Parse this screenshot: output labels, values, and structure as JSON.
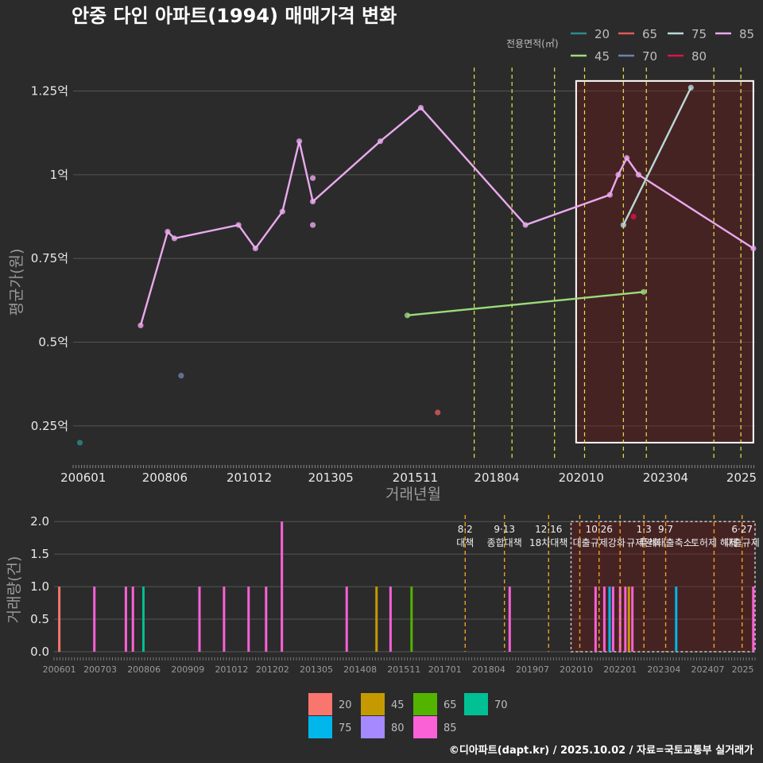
{
  "title": "안중 다인 아파트(1994) 매매가격 변화",
  "credit": "©디아파트(dapt.kr) / 2025.10.02 / 자료=국토교통부 실거래가",
  "colors": {
    "20": "#2e8b8b",
    "45": "#9bdc7a",
    "65": "#e05a5a",
    "70": "#6f7fae",
    "75": "#b9d8d8",
    "80": "#e0104c",
    "85": "#eaa9ee"
  },
  "bar_colors": {
    "20": "#f8766d",
    "45": "#c49a00",
    "65": "#53b400",
    "70": "#00c094",
    "75": "#00b6eb",
    "80": "#a58aff",
    "85": "#fb61d7"
  },
  "chart_data": [
    {
      "type": "line",
      "name": "price",
      "title": "안중 다인 아파트(1994) 매매가격 변화",
      "xlabel": "거래년월",
      "ylabel": "평균가(원)",
      "x_ticks": [
        "200601",
        "200806",
        "201012",
        "201305",
        "201511",
        "201804",
        "202010",
        "202304",
        "2025"
      ],
      "y_ticks": [
        {
          "value": 0.25,
          "label": "0.25억"
        },
        {
          "value": 0.5,
          "label": "0.5억"
        },
        {
          "value": 0.75,
          "label": "0.75억"
        },
        {
          "value": 1.0,
          "label": "1억"
        },
        {
          "value": 1.25,
          "label": "1.25억"
        }
      ],
      "ylim": [
        0.15,
        1.32
      ],
      "xlim": [
        2005.7,
        2025.9
      ],
      "legend_title": "전용면적(㎡)",
      "legend": [
        "20",
        "65",
        "75",
        "85",
        "45",
        "70",
        "80"
      ],
      "highlight_range": [
        2020.6,
        2025.85,
        0.2,
        1.28
      ],
      "event_lines": [
        2017.58,
        2018.7,
        2019.96,
        2020.85,
        2022.0,
        2022.68,
        2024.68,
        2025.48
      ],
      "series": [
        {
          "name": "85",
          "line": true,
          "points": [
            [
              2007.7,
              0.55
            ],
            [
              2008.5,
              0.83
            ],
            [
              2008.7,
              0.81
            ],
            [
              2010.6,
              0.85
            ],
            [
              2011.1,
              0.78
            ],
            [
              2011.9,
              0.89
            ],
            [
              2012.4,
              1.1
            ],
            [
              2012.8,
              0.92
            ],
            [
              2014.8,
              1.1
            ],
            [
              2016.0,
              1.2
            ],
            [
              2019.1,
              0.85
            ],
            [
              2021.6,
              0.94
            ],
            [
              2021.85,
              1.0
            ],
            [
              2022.1,
              1.05
            ],
            [
              2022.45,
              1.0
            ],
            [
              2025.85,
              0.78
            ]
          ],
          "extra_points": [
            [
              2012.8,
              0.99
            ],
            [
              2012.8,
              0.85
            ]
          ]
        },
        {
          "name": "45",
          "line": true,
          "points": [
            [
              2015.6,
              0.58
            ],
            [
              2022.6,
              0.65
            ]
          ]
        },
        {
          "name": "75",
          "line": true,
          "points": [
            [
              2022.0,
              0.85
            ],
            [
              2024.0,
              1.26
            ]
          ]
        },
        {
          "name": "20",
          "line": false,
          "points": [
            [
              2005.9,
              0.2
            ]
          ]
        },
        {
          "name": "70",
          "line": false,
          "points": [
            [
              2008.9,
              0.4
            ]
          ]
        },
        {
          "name": "65",
          "line": false,
          "points": [
            [
              2016.5,
              0.29
            ]
          ]
        },
        {
          "name": "80",
          "line": false,
          "points": [
            [
              2022.3,
              0.875
            ]
          ]
        }
      ]
    },
    {
      "type": "bar",
      "name": "volume",
      "ylabel": "거래량(건)",
      "x_ticks": [
        "200601",
        "200703",
        "200806",
        "200909",
        "201012",
        "201202",
        "201305",
        "201408",
        "201511",
        "201701",
        "201804",
        "201907",
        "202010",
        "202201",
        "202304",
        "202407",
        "2025"
      ],
      "y_ticks": [
        {
          "value": 0,
          "label": "0.0"
        },
        {
          "value": 0.5,
          "label": "0.5"
        },
        {
          "value": 1,
          "label": "1.0"
        },
        {
          "value": 1.5,
          "label": "1.5"
        },
        {
          "value": 2,
          "label": "2.0"
        }
      ],
      "ylim": [
        0,
        2.1
      ],
      "xlim": [
        2005.85,
        2025.85
      ],
      "legend": [
        "20",
        "45",
        "65",
        "70",
        "75",
        "80",
        "85"
      ],
      "highlight_range": [
        2020.6,
        2025.85,
        0,
        2.0
      ],
      "bars": [
        {
          "x": 2006.0,
          "v": 1,
          "s": "20"
        },
        {
          "x": 2007.0,
          "v": 1,
          "s": "85"
        },
        {
          "x": 2007.9,
          "v": 1,
          "s": "85"
        },
        {
          "x": 2008.1,
          "v": 1,
          "s": "85"
        },
        {
          "x": 2008.4,
          "v": 1,
          "s": "70"
        },
        {
          "x": 2010.0,
          "v": 1,
          "s": "85"
        },
        {
          "x": 2010.7,
          "v": 1,
          "s": "85"
        },
        {
          "x": 2011.4,
          "v": 1,
          "s": "85"
        },
        {
          "x": 2011.9,
          "v": 1,
          "s": "85"
        },
        {
          "x": 2012.35,
          "v": 2,
          "s": "85"
        },
        {
          "x": 2014.2,
          "v": 1,
          "s": "85"
        },
        {
          "x": 2015.05,
          "v": 1,
          "s": "45"
        },
        {
          "x": 2015.45,
          "v": 1,
          "s": "85"
        },
        {
          "x": 2016.05,
          "v": 1,
          "s": "65"
        },
        {
          "x": 2018.85,
          "v": 1,
          "s": "85"
        },
        {
          "x": 2021.3,
          "v": 1,
          "s": "85"
        },
        {
          "x": 2021.55,
          "v": 1,
          "s": "85"
        },
        {
          "x": 2021.7,
          "v": 1,
          "s": "75"
        },
        {
          "x": 2021.8,
          "v": 1,
          "s": "85"
        },
        {
          "x": 2022.0,
          "v": 1,
          "s": "85"
        },
        {
          "x": 2022.15,
          "v": 1,
          "s": "85"
        },
        {
          "x": 2022.25,
          "v": 1,
          "s": "45"
        },
        {
          "x": 2022.35,
          "v": 1,
          "s": "85"
        },
        {
          "x": 2023.6,
          "v": 1,
          "s": "75"
        },
        {
          "x": 2025.8,
          "v": 1,
          "s": "85"
        }
      ],
      "events": [
        {
          "x": 2017.58,
          "date": "8·2",
          "label": "대책"
        },
        {
          "x": 2018.7,
          "date": "9·13",
          "label": "종합대책"
        },
        {
          "x": 2019.96,
          "date": "12·16",
          "label": "18차대책"
        },
        {
          "x": 2020.85,
          "date": "",
          "label": ""
        },
        {
          "x": 2021.4,
          "date": "10·26",
          "label": "대출규제강화"
        },
        {
          "x": 2022.0,
          "date": "",
          "label": ""
        },
        {
          "x": 2022.68,
          "date": "1·3",
          "label": "규제완화"
        },
        {
          "x": 2023.3,
          "date": "9·7",
          "label": "특례대출축소"
        },
        {
          "x": 2024.68,
          "date": "",
          "label": "토허제 해제"
        },
        {
          "x": 2025.48,
          "date": "6·27",
          "label": "대출규제"
        }
      ]
    }
  ]
}
